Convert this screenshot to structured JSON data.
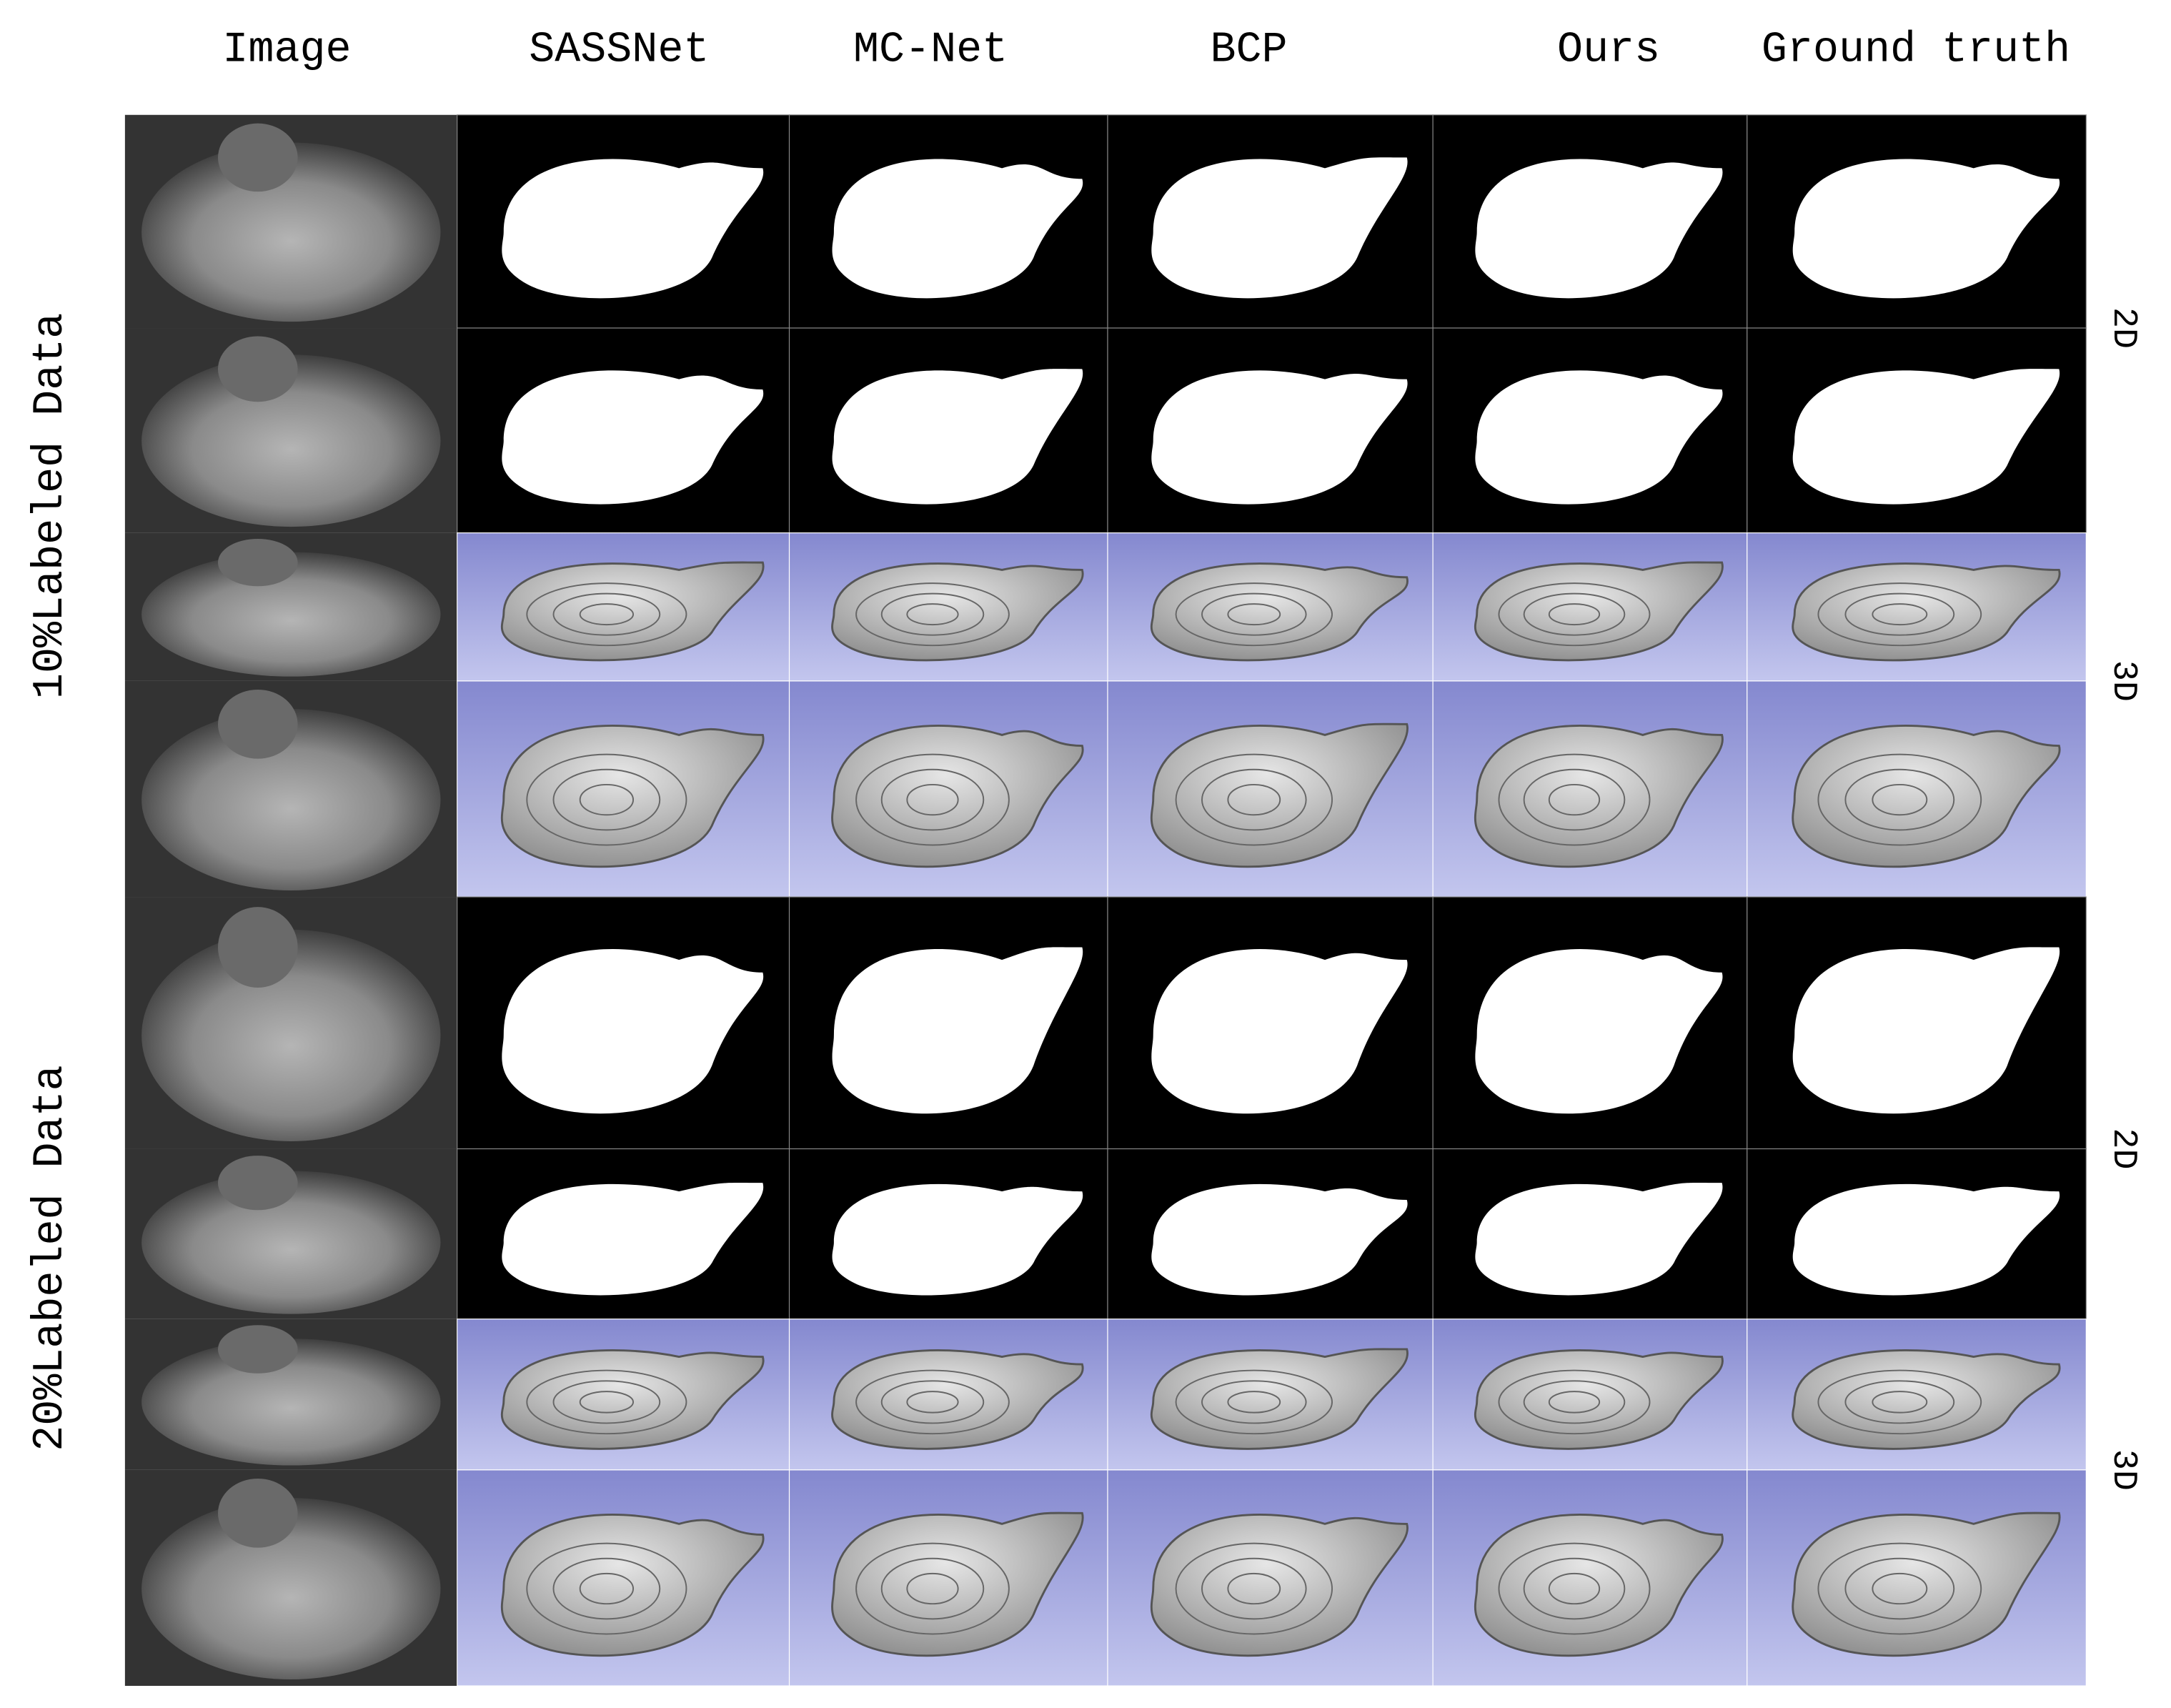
{
  "header": {
    "columns": [
      "Image",
      "SASSNet",
      "MC-Net",
      "BCP",
      "Ours",
      "Ground truth"
    ]
  },
  "groups": [
    {
      "label": "10%Labeled Data",
      "rows": [
        "2D",
        "3D"
      ]
    },
    {
      "label": "20%Labeled Data",
      "rows": [
        "2D",
        "3D"
      ]
    }
  ]
}
